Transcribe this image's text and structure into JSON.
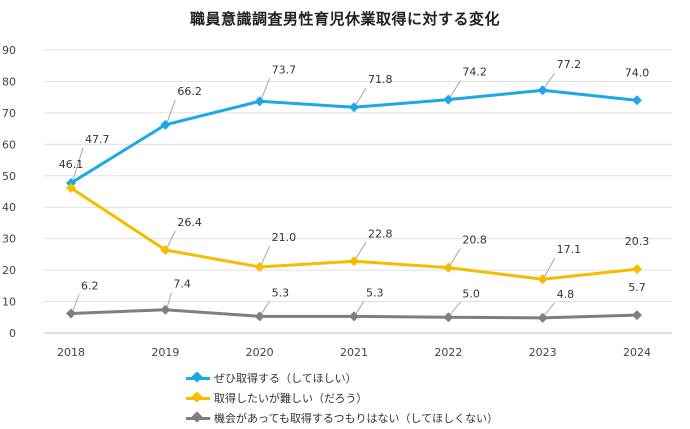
{
  "chart_data": {
    "type": "line",
    "title": "職員意識調査男性育児休業取得に対する変化",
    "categories": [
      "2018",
      "2019",
      "2020",
      "2021",
      "2022",
      "2023",
      "2024"
    ],
    "ylim": [
      0,
      90
    ],
    "yticks": [
      0,
      10,
      20,
      30,
      40,
      50,
      60,
      70,
      80,
      90
    ],
    "grid": true,
    "legend_position": "bottom",
    "series": [
      {
        "name": "ぜひ取得する（してほしい）",
        "color": "#1BA8E6",
        "values": [
          47.7,
          66.2,
          73.7,
          71.8,
          74.2,
          77.2,
          74.0
        ],
        "labels": [
          "47.7",
          "66.2",
          "73.7",
          "71.8",
          "74.2",
          "77.2",
          "74.0"
        ]
      },
      {
        "name": "取得したいが難しい（だろう）",
        "color": "#F5BC00",
        "values": [
          46.1,
          26.4,
          21.0,
          22.8,
          20.8,
          17.1,
          20.3
        ],
        "labels": [
          "46.1",
          "26.4",
          "21.0",
          "22.8",
          "20.8",
          "17.1",
          "20.3"
        ]
      },
      {
        "name": "機会があっても取得するつもりはない（してほしくない）",
        "color": "#7F7F7F",
        "values": [
          6.2,
          7.4,
          5.3,
          5.3,
          5.0,
          4.8,
          5.7
        ],
        "labels": [
          "6.2",
          "7.4",
          "5.3",
          "5.3",
          "5.0",
          "4.8",
          "5.7"
        ]
      }
    ]
  }
}
